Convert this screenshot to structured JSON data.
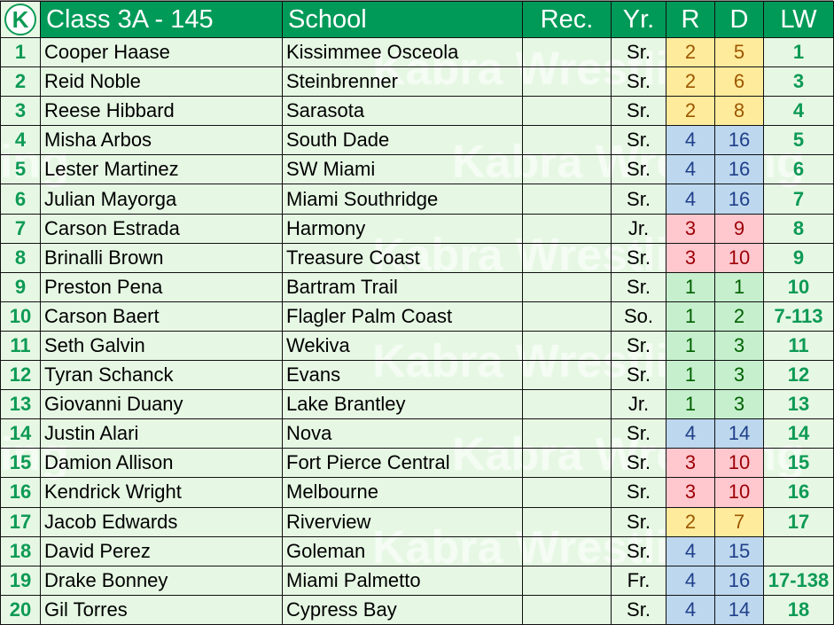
{
  "logo_letter": "K",
  "watermark": "Kabra Wrestling",
  "header": {
    "title": "Class 3A - 145",
    "school": "School",
    "rec": "Rec.",
    "yr": "Yr.",
    "r": "R",
    "d": "D",
    "lw": "LW"
  },
  "colors": {
    "header": "#009a58",
    "background": "#e6f8e4",
    "yellow": "#ffeb9c",
    "blue": "#bdd7ee",
    "pink": "#ffc7ce",
    "green": "#c6efce"
  },
  "rows": [
    {
      "rank": "1",
      "name": "Cooper Haase",
      "school": "Kissimmee Osceola",
      "rec": "",
      "yr": "Sr.",
      "r": "2",
      "d": "5",
      "lw": "1",
      "color": "yellow"
    },
    {
      "rank": "2",
      "name": "Reid Noble",
      "school": "Steinbrenner",
      "rec": "",
      "yr": "Sr.",
      "r": "2",
      "d": "6",
      "lw": "3",
      "color": "yellow"
    },
    {
      "rank": "3",
      "name": "Reese Hibbard",
      "school": "Sarasota",
      "rec": "",
      "yr": "Sr.",
      "r": "2",
      "d": "8",
      "lw": "4",
      "color": "yellow"
    },
    {
      "rank": "4",
      "name": "Misha Arbos",
      "school": "South Dade",
      "rec": "",
      "yr": "Sr.",
      "r": "4",
      "d": "16",
      "lw": "5",
      "color": "blue"
    },
    {
      "rank": "5",
      "name": "Lester Martinez",
      "school": "SW Miami",
      "rec": "",
      "yr": "Sr.",
      "r": "4",
      "d": "16",
      "lw": "6",
      "color": "blue"
    },
    {
      "rank": "6",
      "name": "Julian Mayorga",
      "school": "Miami Southridge",
      "rec": "",
      "yr": "Sr.",
      "r": "4",
      "d": "16",
      "lw": "7",
      "color": "blue"
    },
    {
      "rank": "7",
      "name": "Carson Estrada",
      "school": "Harmony",
      "rec": "",
      "yr": "Jr.",
      "r": "3",
      "d": "9",
      "lw": "8",
      "color": "pink"
    },
    {
      "rank": "8",
      "name": "Brinalli Brown",
      "school": "Treasure Coast",
      "rec": "",
      "yr": "Sr.",
      "r": "3",
      "d": "10",
      "lw": "9",
      "color": "pink"
    },
    {
      "rank": "9",
      "name": "Preston Pena",
      "school": "Bartram Trail",
      "rec": "",
      "yr": "Sr.",
      "r": "1",
      "d": "1",
      "lw": "10",
      "color": "green"
    },
    {
      "rank": "10",
      "name": "Carson Baert",
      "school": "Flagler Palm Coast",
      "rec": "",
      "yr": "So.",
      "r": "1",
      "d": "2",
      "lw": "7-113",
      "color": "green"
    },
    {
      "rank": "11",
      "name": "Seth Galvin",
      "school": "Wekiva",
      "rec": "",
      "yr": "Sr.",
      "r": "1",
      "d": "3",
      "lw": "11",
      "color": "green"
    },
    {
      "rank": "12",
      "name": "Tyran Schanck",
      "school": "Evans",
      "rec": "",
      "yr": "Sr.",
      "r": "1",
      "d": "3",
      "lw": "12",
      "color": "green"
    },
    {
      "rank": "13",
      "name": "Giovanni Duany",
      "school": "Lake Brantley",
      "rec": "",
      "yr": "Jr.",
      "r": "1",
      "d": "3",
      "lw": "13",
      "color": "green"
    },
    {
      "rank": "14",
      "name": "Justin Alari",
      "school": "Nova",
      "rec": "",
      "yr": "Sr.",
      "r": "4",
      "d": "14",
      "lw": "14",
      "color": "blue"
    },
    {
      "rank": "15",
      "name": "Damion Allison",
      "school": "Fort Pierce Central",
      "rec": "",
      "yr": "Sr.",
      "r": "3",
      "d": "10",
      "lw": "15",
      "color": "pink"
    },
    {
      "rank": "16",
      "name": "Kendrick Wright",
      "school": "Melbourne",
      "rec": "",
      "yr": "Sr.",
      "r": "3",
      "d": "10",
      "lw": "16",
      "color": "pink"
    },
    {
      "rank": "17",
      "name": "Jacob Edwards",
      "school": "Riverview",
      "rec": "",
      "yr": "Sr.",
      "r": "2",
      "d": "7",
      "lw": "17",
      "color": "yellow"
    },
    {
      "rank": "18",
      "name": "David Perez",
      "school": "Goleman",
      "rec": "",
      "yr": "Sr.",
      "r": "4",
      "d": "15",
      "lw": "",
      "color": "blue"
    },
    {
      "rank": "19",
      "name": "Drake Bonney",
      "school": "Miami Palmetto",
      "rec": "",
      "yr": "Fr.",
      "r": "4",
      "d": "16",
      "lw": "17-138",
      "color": "blue"
    },
    {
      "rank": "20",
      "name": "Gil Torres",
      "school": "Cypress Bay",
      "rec": "",
      "yr": "Sr.",
      "r": "4",
      "d": "14",
      "lw": "18",
      "color": "blue"
    }
  ]
}
